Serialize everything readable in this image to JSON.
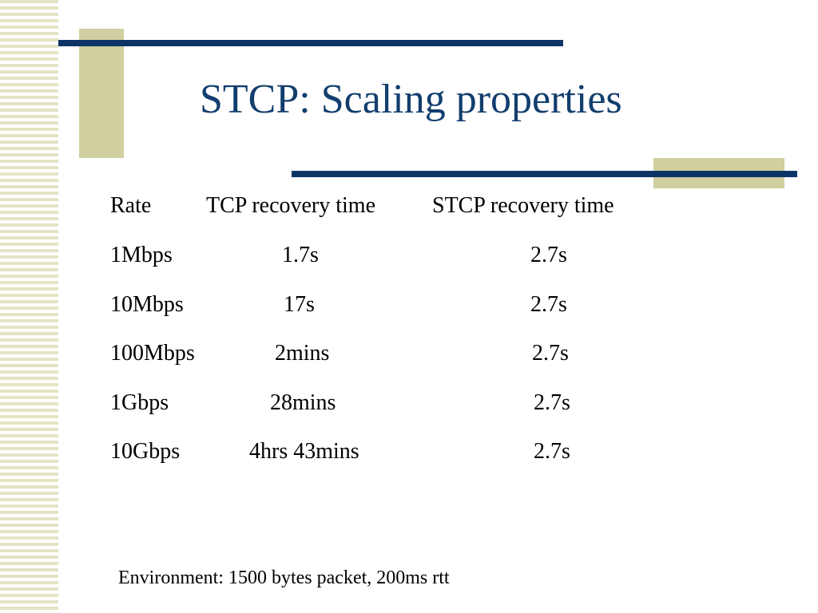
{
  "slide": {
    "title": "STCP: Scaling properties",
    "colors": {
      "title": "#123e6e",
      "rule": "#0d3466",
      "accent": "#cfcf9f",
      "stripe": "#e4e4c4"
    }
  },
  "table": {
    "headers": [
      "Rate",
      "TCP recovery time",
      "STCP recovery time"
    ],
    "rows": [
      [
        "1Mbps",
        "1.7s",
        "2.7s"
      ],
      [
        "10Mbps",
        "17s",
        "2.7s"
      ],
      [
        "100Mbps",
        "2mins",
        "2.7s"
      ],
      [
        "1Gbps",
        "28mins",
        "2.7s"
      ],
      [
        "10Gbps",
        "4hrs 43mins",
        "2.7s"
      ]
    ]
  },
  "footnote": "Environment: 1500 bytes packet, 200ms rtt"
}
